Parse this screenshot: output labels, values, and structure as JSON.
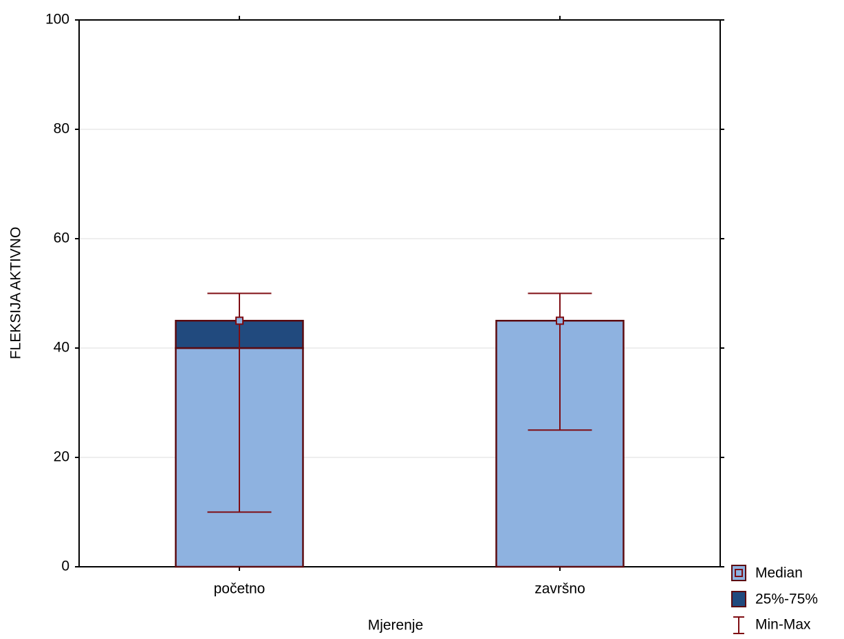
{
  "chart_data": {
    "type": "box",
    "x_label": "Mjerenje",
    "y_label": "FLEKSIJA AKTIVNO",
    "categories": [
      "početno",
      "završno"
    ],
    "median": [
      45,
      45
    ],
    "q1": [
      40,
      45
    ],
    "q3": [
      45,
      45
    ],
    "min": [
      10,
      25
    ],
    "max": [
      50,
      50
    ],
    "legend": {
      "median": "Median",
      "box": "25%-75%",
      "whisker": "Min-Max"
    },
    "colors": {
      "base": "#8eb2e0",
      "box": "#214a7e",
      "outline": "#5c0b10",
      "whisker": "#7f0c12"
    },
    "ylim": [
      0,
      100
    ],
    "yticks": [
      0,
      20,
      40,
      60,
      80,
      100
    ],
    "grid": true
  }
}
